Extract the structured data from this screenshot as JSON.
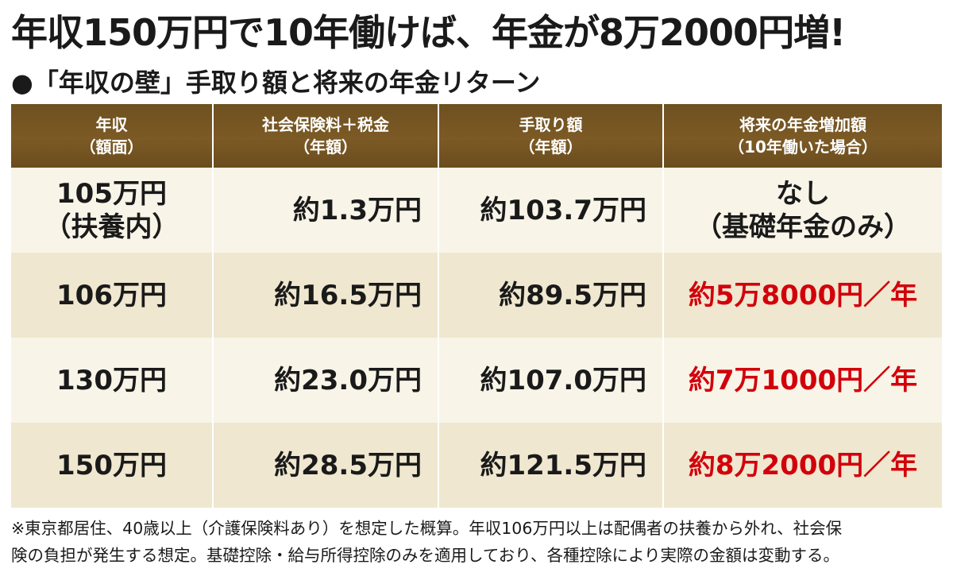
{
  "title": "年収150万円で10年働けば、年金が8万2000円増!",
  "subtitle": "●「年収の壁」手取り額と将来の年金リターン",
  "table": {
    "headers": [
      {
        "line1": "年収",
        "line2": "（額面）"
      },
      {
        "line1": "社会保険料＋税金",
        "line2": "（年額）"
      },
      {
        "line1": "手取り額",
        "line2": "（年額）"
      },
      {
        "line1": "将来の年金増加額",
        "line2": "（10年働いた場合）"
      }
    ],
    "rows": [
      {
        "income": "105万円",
        "income_note": "（扶養内）",
        "cost": "約1.3万円",
        "takehome": "約103.7万円",
        "pension": "なし",
        "pension_note": "（基礎年金のみ）",
        "pension_highlight": false
      },
      {
        "income": "106万円",
        "income_note": "",
        "cost": "約16.5万円",
        "takehome": "約89.5万円",
        "pension": "約5万8000円／年",
        "pension_note": "",
        "pension_highlight": true
      },
      {
        "income": "130万円",
        "income_note": "",
        "cost": "約23.0万円",
        "takehome": "約107.0万円",
        "pension": "約7万1000円／年",
        "pension_note": "",
        "pension_highlight": true
      },
      {
        "income": "150万円",
        "income_note": "",
        "cost": "約28.5万円",
        "takehome": "約121.5万円",
        "pension": "約8万2000円／年",
        "pension_note": "",
        "pension_highlight": true
      }
    ]
  },
  "notes": [
    "※東京都居住、40歳以上（介護保険料あり）を想定した概算。年収106万円以上は配偶者の扶養から外れ、社会保",
    "険の負担が発生する想定。基礎控除・給与所得控除のみを適用しており、各種控除により実際の金額は変動する。"
  ],
  "colors": {
    "header_bg": "#7c5a25",
    "row_light": "#f8f4e8",
    "row_dark": "#efe7cf",
    "highlight": "#d2000b"
  }
}
